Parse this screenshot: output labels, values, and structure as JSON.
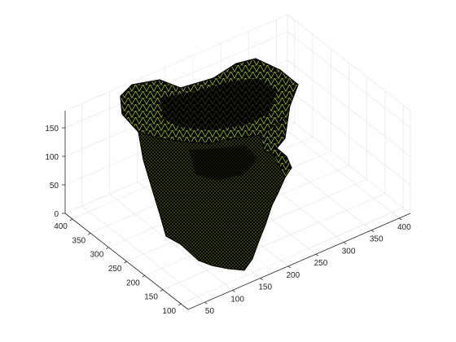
{
  "chart_data": {
    "type": "mesh-3d",
    "title": "",
    "xlabel": "",
    "ylabel": "",
    "zlabel": "",
    "grid": true,
    "box": "open",
    "view": "default-3d",
    "axes": {
      "x": {
        "range": [
          20,
          420
        ],
        "ticks": [
          50,
          100,
          150,
          200,
          250,
          300,
          350,
          400
        ],
        "tick_labels": [
          "50",
          "100",
          "150",
          "200",
          "250",
          "300",
          "350",
          "400"
        ]
      },
      "y": {
        "range": [
          80,
          420
        ],
        "ticks": [
          100,
          150,
          200,
          250,
          300,
          350,
          400
        ],
        "tick_labels": [
          "100",
          "150",
          "200",
          "250",
          "300",
          "350",
          "400"
        ]
      },
      "z": {
        "range": [
          0,
          180
        ],
        "ticks": [
          0,
          50,
          100,
          150
        ],
        "tick_labels": [
          "0",
          "50",
          "100",
          "150"
        ]
      }
    },
    "surface": {
      "face_color": "#a8c846",
      "edge_color": "#000000",
      "description_hidden": true
    },
    "colors": {
      "axis": "#262626",
      "grid": "#e3e3e3",
      "background": "#ffffff"
    }
  }
}
